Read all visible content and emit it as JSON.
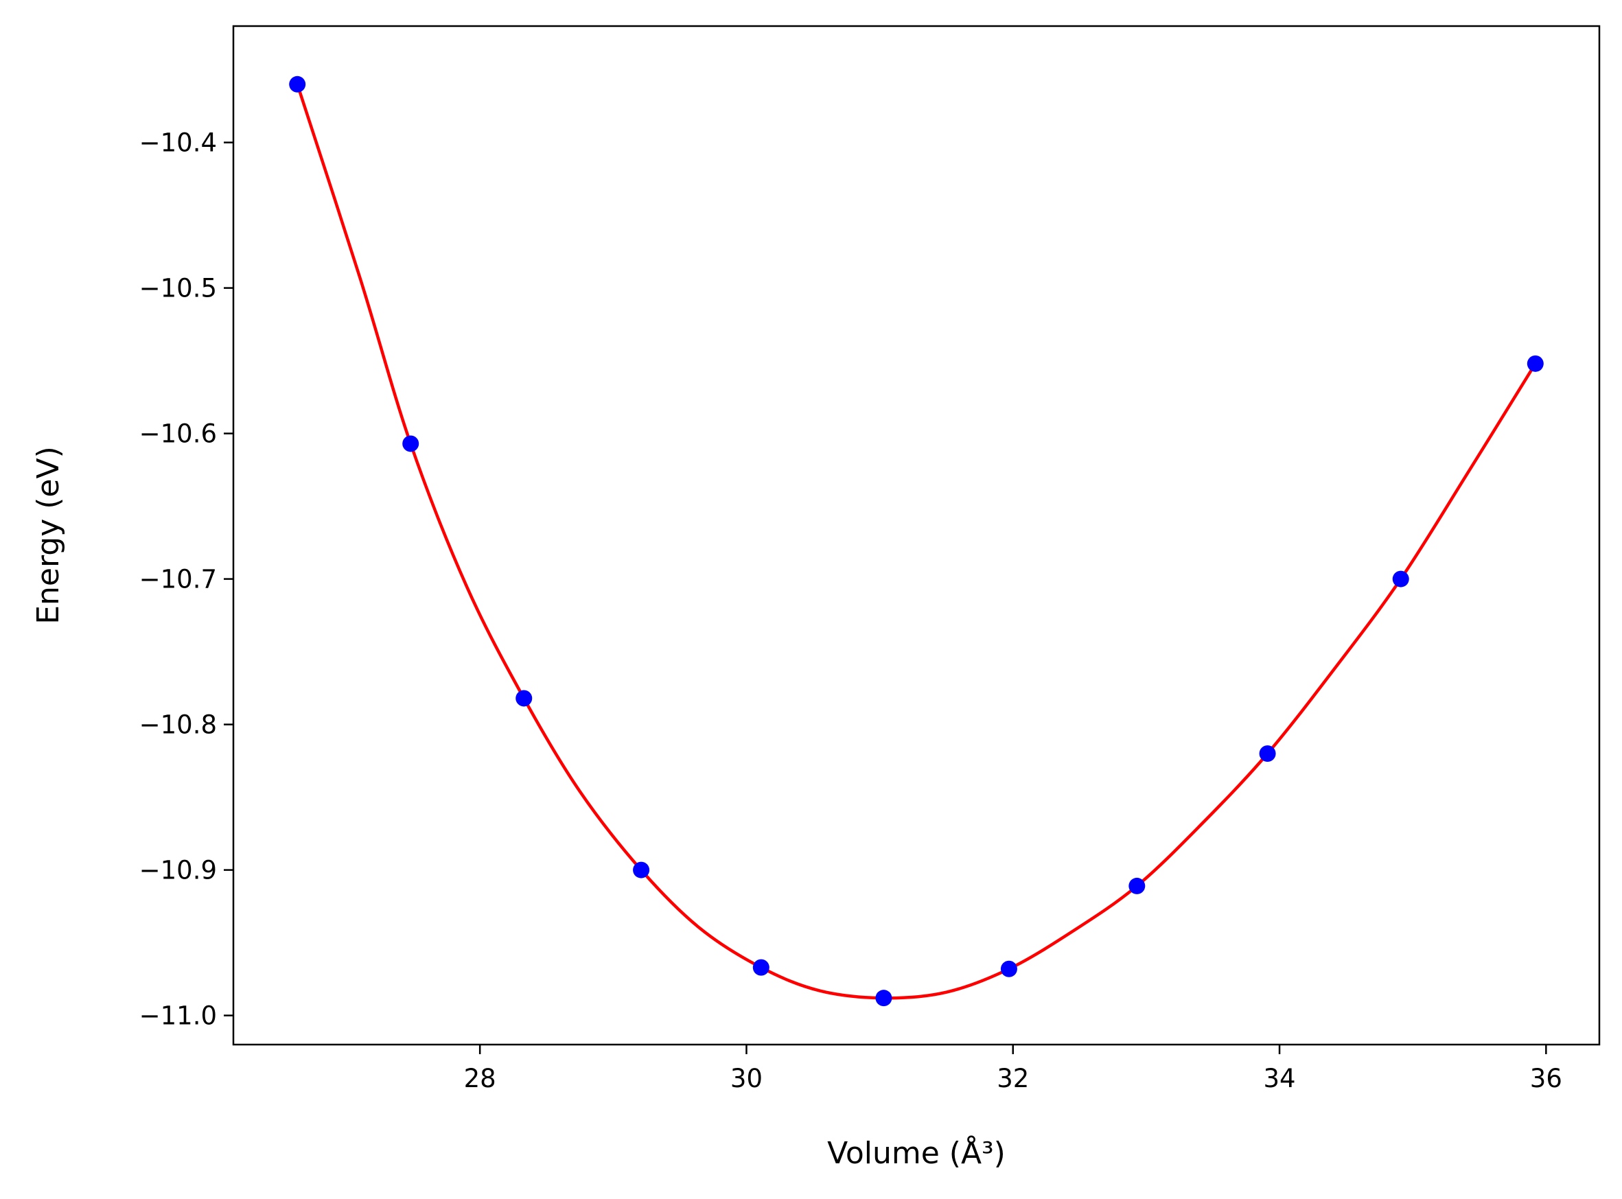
{
  "chart_data": {
    "type": "scatter",
    "title": "",
    "xlabel": "Volume (Å³)",
    "ylabel": "Energy (eV)",
    "xlim": [
      26.15,
      36.4
    ],
    "ylim": [
      -11.02,
      -10.32
    ],
    "grid": false,
    "x_ticks": [
      28,
      30,
      32,
      34,
      36
    ],
    "x_tick_labels": [
      "28",
      "30",
      "32",
      "34",
      "36"
    ],
    "y_ticks": [
      -10.4,
      -10.5,
      -10.6,
      -10.7,
      -10.8,
      -10.9,
      -11.0
    ],
    "y_tick_labels": [
      "−10.4",
      "−10.5",
      "−10.6",
      "−10.7",
      "−10.8",
      "−10.9",
      "−11.0"
    ],
    "series": [
      {
        "kind": "points",
        "color": "#0000ff",
        "x": [
          26.63,
          27.48,
          28.33,
          29.21,
          30.11,
          31.03,
          31.97,
          32.93,
          33.91,
          34.91,
          35.92
        ],
        "y": [
          -10.36,
          -10.607,
          -10.782,
          -10.9,
          -10.967,
          -10.988,
          -10.968,
          -10.911,
          -10.82,
          -10.7,
          -10.552
        ]
      },
      {
        "kind": "fit-curve",
        "color": "#ff0000",
        "x": [
          26.63,
          27.1,
          27.48,
          27.9,
          28.33,
          28.75,
          29.21,
          29.65,
          30.11,
          30.55,
          31.03,
          31.5,
          31.97,
          32.45,
          32.93,
          33.42,
          33.91,
          34.41,
          34.91,
          35.42,
          35.92
        ],
        "y": [
          -10.36,
          -10.493,
          -10.607,
          -10.705,
          -10.782,
          -10.846,
          -10.9,
          -10.94,
          -10.967,
          -10.983,
          -10.988,
          -10.984,
          -10.968,
          -10.942,
          -10.911,
          -10.868,
          -10.82,
          -10.762,
          -10.7,
          -10.626,
          -10.552
        ]
      }
    ]
  }
}
